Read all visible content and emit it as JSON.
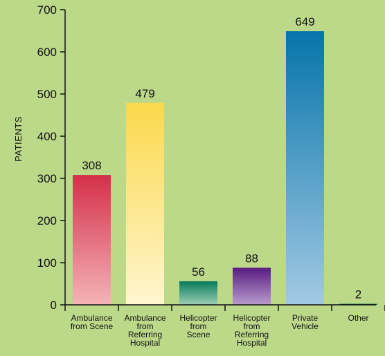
{
  "background_color": "#bcd98a",
  "chart_data": {
    "type": "bar",
    "title": "",
    "xlabel": "",
    "ylabel": "PATIENTS",
    "ylim": [
      0,
      700
    ],
    "yticks": [
      0,
      100,
      200,
      300,
      400,
      500,
      600,
      700
    ],
    "grid": false,
    "categories": [
      [
        "Ambulance",
        "from Scene"
      ],
      [
        "Ambulance",
        "from",
        "Referring",
        "Hospital"
      ],
      [
        "Helicopter",
        "from",
        "Scene"
      ],
      [
        "Helicopter",
        "from",
        "Referring",
        "Hospital"
      ],
      [
        "Private",
        "Vehicle"
      ],
      [
        "Other"
      ]
    ],
    "values": [
      308,
      479,
      56,
      88,
      649,
      2
    ],
    "data_labels": [
      "308",
      "479",
      "56",
      "88",
      "649",
      "2"
    ],
    "bar_colors": [
      {
        "top": "#d42f4a",
        "bottom": "#f4b4b8"
      },
      {
        "top": "#fbd84c",
        "bottom": "#fff5cf"
      },
      {
        "top": "#077a5a",
        "bottom": "#9cd0b6"
      },
      {
        "top": "#581c80",
        "bottom": "#b99ccd"
      },
      {
        "top": "#0674aa",
        "bottom": "#a2c9e4"
      },
      {
        "top": "#0c6a55",
        "bottom": "#0c6a55"
      }
    ]
  }
}
